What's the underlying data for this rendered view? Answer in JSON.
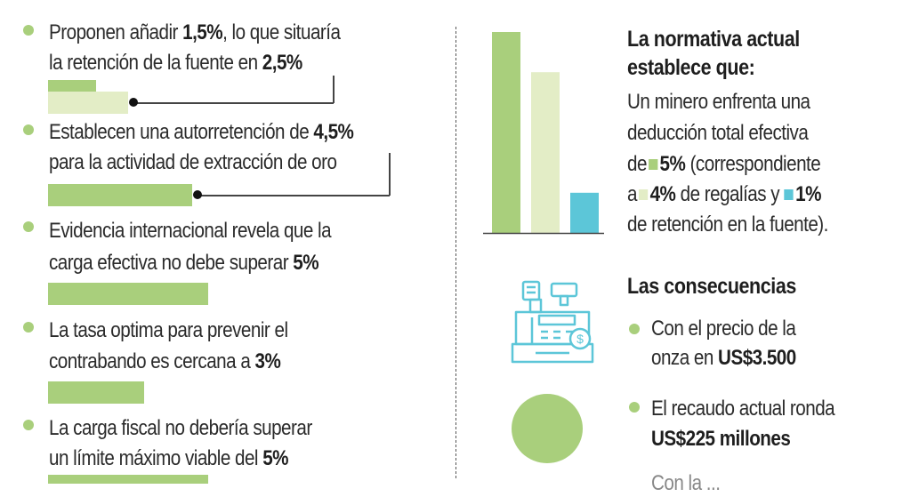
{
  "left_items": [
    {
      "pre": "Proponen añadir ",
      "b1": "1,5%",
      "mid": ", lo que situaría",
      "line2_pre": "la retención de la fuente en ",
      "b2": "2,5%"
    },
    {
      "pre": "Establecen una autorretención de ",
      "b1": "4,5%",
      "line2_pre": "para la actividad de extracción de oro"
    },
    {
      "pre": "Evidencia internacional revela que la",
      "line2_pre": "carga efectiva no debe superar ",
      "b2": "5%"
    },
    {
      "pre": "La tasa optima para prevenir el",
      "line2_pre": "contrabando es cercana a ",
      "b2": "3%"
    },
    {
      "pre": "La carga fiscal no debería superar",
      "line2_pre": "un límite máximo viable del ",
      "b2": "5%"
    }
  ],
  "normativa": {
    "title_1": "La normativa actual",
    "title_2": "establece que:",
    "l1": "Un minero enfrenta una",
    "l2": "deducción total efectiva",
    "l3_pre": "de",
    "l3_b": "5%",
    "l3_post": " (correspondiente",
    "l4_pre": "a",
    "l4_b": "4%",
    "l4_mid": " de regalías y",
    "l4_b2": "1%",
    "l5": "de retención en la fuente)."
  },
  "chart_data": {
    "type": "bar",
    "categories": [
      "Deducción total",
      "Regalías",
      "Retención en la fuente"
    ],
    "values": [
      5,
      4,
      1
    ],
    "ylim": [
      0,
      5
    ],
    "colors": [
      "#a9cf7c",
      "#e3edc6",
      "#5cc6d8"
    ]
  },
  "consecuencias": {
    "title": "Las consecuencias",
    "c1_l1": "Con el precio de la",
    "c1_pre": "onza en ",
    "c1_b": "US$3.500",
    "c2_l1": "El recaudo actual ronda",
    "c2_b": "US$225 millones",
    "c3_partial": "Con la ..."
  },
  "icons": [
    "cash-register-icon",
    "green-circle-icon"
  ],
  "colors": {
    "green": "#a9cf7c",
    "light_green": "#e3edc6",
    "blue": "#5cc6d8"
  }
}
